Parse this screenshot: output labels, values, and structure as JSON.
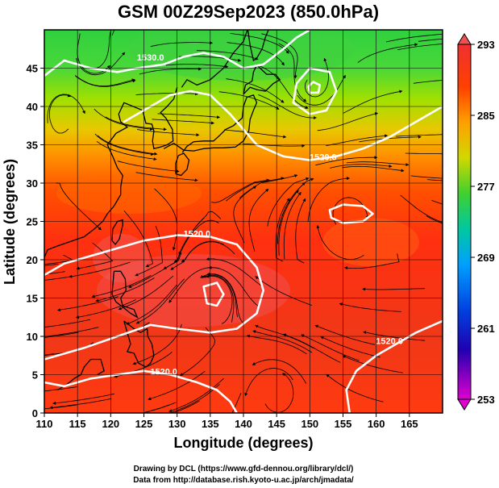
{
  "title": "GSM 00Z29Sep2023 (850.0hPa)",
  "credits": {
    "line1": "Drawing by DCL (https://www.gfd-dennou.org/library/dcl/)",
    "line2": "Data from http://database.rish.kyoto-u.ac.jp/arch/jmadata/"
  },
  "chart_data": {
    "type": "heatmap",
    "title": "GSM 00Z29Sep2023 (850.0hPa)",
    "xlabel": "Longitude (degrees)",
    "ylabel": "Latitude  (degrees)",
    "xlim": [
      110,
      170
    ],
    "ylim": [
      0,
      50
    ],
    "xticks": [
      "110",
      "115",
      "120",
      "125",
      "130",
      "135",
      "140",
      "145",
      "150",
      "155",
      "160",
      "165"
    ],
    "yticks": [
      "0",
      "5",
      "10",
      "15",
      "20",
      "25",
      "30",
      "35",
      "40",
      "45"
    ],
    "grid": true,
    "colorbar": {
      "range": [
        253,
        293
      ],
      "ticks": [
        "293",
        "285",
        "277",
        "269",
        "261",
        "253"
      ],
      "colors": [
        "#d800d8",
        "#3000c8",
        "#0068ff",
        "#00c8c0",
        "#30d830",
        "#a8e000",
        "#f0c000",
        "#ff6000",
        "#ff3000",
        "#f03030"
      ]
    },
    "contour_labels": [
      {
        "text": "1530.0",
        "lon": 126,
        "lat": 46
      },
      {
        "text": "1520.0",
        "lon": 152,
        "lat": 33
      },
      {
        "text": "1520.0",
        "lon": 133,
        "lat": 23
      },
      {
        "text": "1520.0",
        "lon": 128,
        "lat": 5
      },
      {
        "text": "1520.0",
        "lon": 162,
        "lat": 9
      }
    ],
    "highs_lows": [
      {
        "lon": 150.5,
        "lat": 42.5
      },
      {
        "lon": 155.5,
        "lat": 25.8
      },
      {
        "lon": 135.5,
        "lat": 15.5
      },
      {
        "lon": 145,
        "lat": 3
      }
    ]
  }
}
